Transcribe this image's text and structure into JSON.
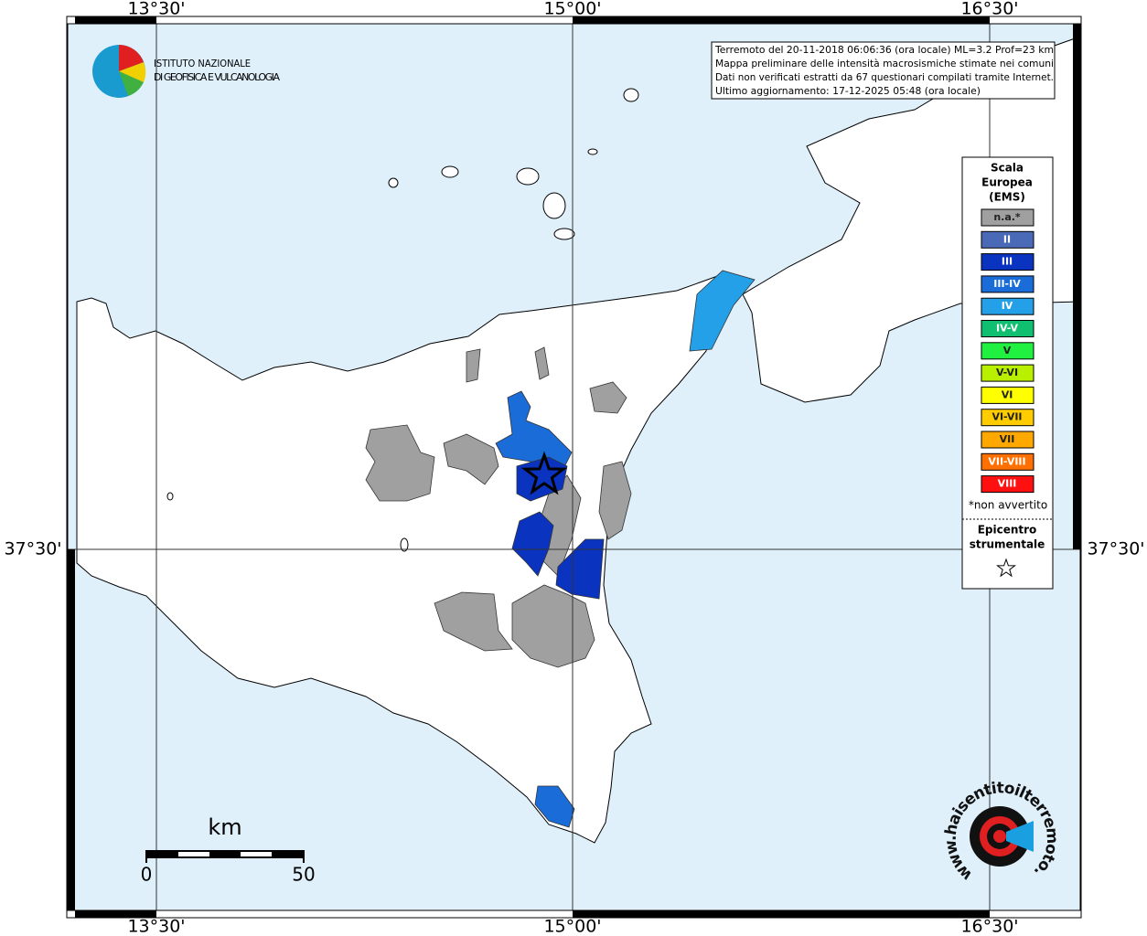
{
  "logo": {
    "line1": "ISTITUTO NAZIONALE",
    "line2": "DI GEOFISICA E VULCANOLOGIA"
  },
  "info": {
    "lines": [
      "Terremoto del 20-11-2018 06:06:36 (ora locale) ML=3.2 Prof=23 km",
      "Mappa preliminare delle intensità macrosismiche stimate nei comuni",
      "Dati non verificati estratti da 67 questionari compilati tramite Internet.",
      "Ultimo aggiornamento: 17-12-2025 05:48 (ora locale)"
    ]
  },
  "grid": {
    "lon_labels": [
      "13°30'",
      "15°00'",
      "16°30'"
    ],
    "lat_labels": [
      "37°30'"
    ]
  },
  "legend": {
    "title": [
      "Scala",
      "Europea",
      "(EMS)"
    ],
    "items": [
      {
        "label": "n.a.*",
        "color": "#a0a0a0"
      },
      {
        "label": "II",
        "color": "#4a6ab8"
      },
      {
        "label": "III",
        "color": "#0a34c0"
      },
      {
        "label": "III-IV",
        "color": "#1a6cd8"
      },
      {
        "label": "IV",
        "color": "#24a0e8"
      },
      {
        "label": "IV-V",
        "color": "#10c070"
      },
      {
        "label": "V",
        "color": "#20f040"
      },
      {
        "label": "V-VI",
        "color": "#b8f000"
      },
      {
        "label": "VI",
        "color": "#ffff00"
      },
      {
        "label": "VI-VII",
        "color": "#ffcc00"
      },
      {
        "label": "VII",
        "color": "#ffa800"
      },
      {
        "label": "VII-VIII",
        "color": "#ff7000"
      },
      {
        "label": "VIII",
        "color": "#ff1010"
      }
    ],
    "note": "*non avvertito",
    "epicenter": [
      "Epicentro",
      "strumentale"
    ]
  },
  "scale_bar": {
    "unit": "km",
    "start": "0",
    "end": "50"
  },
  "badge": {
    "text": "www.haisentitoilterremoto.it"
  }
}
